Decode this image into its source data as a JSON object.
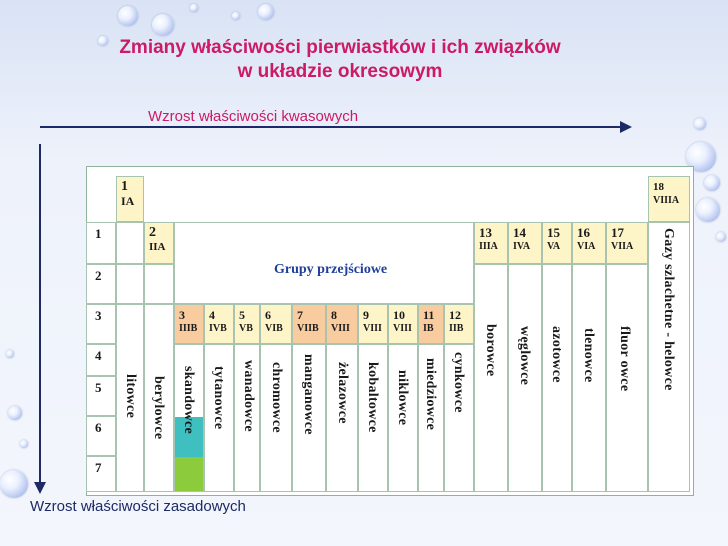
{
  "title_line1": "Zmiany właściwości pierwiastków i ich związków",
  "title_line2": "w układzie okresowym",
  "acid_label": "Wzrost właściwości kwasowych",
  "base_label": "Wzrost właściwości zasadowych",
  "transition_label": "Grupy przejściowe",
  "colors": {
    "title": "#cc1a66",
    "arrow": "#1c2a66",
    "group_orange": "#f8cc9e",
    "group_yellow": "#fdf4c8",
    "skandowce": "#3fbfbf",
    "skandowce_p7": "#8ccc3c"
  },
  "groups": {
    "g1": {
      "num": "1",
      "roman": "IA"
    },
    "g2": {
      "num": "2",
      "roman": "IIA"
    },
    "g3": {
      "num": "3",
      "roman": "IIIB"
    },
    "g4": {
      "num": "4",
      "roman": "IVB"
    },
    "g5": {
      "num": "5",
      "roman": "VB"
    },
    "g6": {
      "num": "6",
      "roman": "VIB"
    },
    "g7": {
      "num": "7",
      "roman": "VIIB"
    },
    "g8": {
      "num": "8",
      "roman": "VIII"
    },
    "g9": {
      "num": "9",
      "roman": "VIII"
    },
    "g10": {
      "num": "10",
      "roman": "VIII"
    },
    "g11": {
      "num": "11",
      "roman": "IB"
    },
    "g12": {
      "num": "12",
      "roman": "IIB"
    },
    "g13": {
      "num": "13",
      "roman": "IIIA"
    },
    "g14": {
      "num": "14",
      "roman": "IVA"
    },
    "g15": {
      "num": "15",
      "roman": "VA"
    },
    "g16": {
      "num": "16",
      "roman": "VIA"
    },
    "g17": {
      "num": "17",
      "roman": "VIIA"
    },
    "g18": {
      "num": "18",
      "roman": "VIIIA"
    }
  },
  "periods": [
    "1",
    "2",
    "3",
    "4",
    "5",
    "6",
    "7"
  ],
  "families": {
    "litowce": "litowce",
    "berylowce": "berylowce",
    "skandowce": "skandowce",
    "tytanowce": "tytanowce",
    "wanadowce": "wanadowce",
    "chromowce": "chromowce",
    "manganowce": "manganowce",
    "zelazowce": "żelazowce",
    "kobaltowce": "kobaltowce",
    "niklowce": "niklowce",
    "miedziowce": "miedziowce",
    "cynkowce": "cynkowce",
    "borowce": "borowce",
    "weglowce": "węglowce",
    "azotowce": "azotowce",
    "tlenowce": "tlenowce",
    "fluorowce": "fluor owce",
    "gazy": "Gazy szlachetne - helowce"
  }
}
